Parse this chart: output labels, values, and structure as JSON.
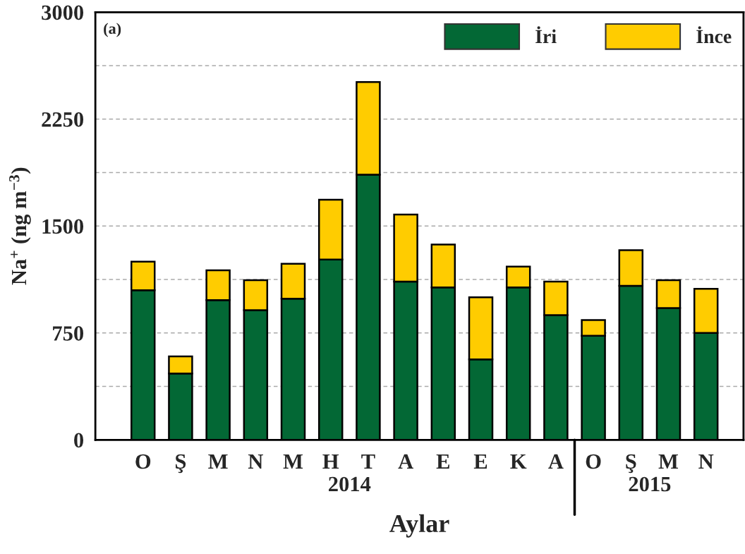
{
  "chart_data": {
    "type": "bar",
    "stacked": true,
    "xlabel": "Aylar",
    "ylabel": "Na$^{+}$ (ng m$^{−3}$)",
    "annotations": [
      "(a)",
      "2014",
      "2015"
    ],
    "categories": [
      "O",
      "Ş",
      "M",
      "N",
      "M",
      "H",
      "T",
      "A",
      "E",
      "E",
      "K",
      "A",
      "O",
      "Ş",
      "M",
      "N"
    ],
    "series": [
      {
        "name": "İri",
        "color": "#036835",
        "values": [
          1050,
          465,
          980,
          910,
          990,
          1265,
          1860,
          1110,
          1070,
          565,
          1070,
          875,
          730,
          1080,
          925,
          750
        ]
      },
      {
        "name": "İnce",
        "color": "#ffcc00",
        "values": [
          200,
          120,
          210,
          210,
          245,
          420,
          650,
          470,
          300,
          435,
          145,
          235,
          110,
          250,
          195,
          310
        ]
      }
    ],
    "ylim": [
      0,
      3000
    ],
    "yticks": [
      0,
      {
        "value": 375,
        "label": null
      },
      750,
      {
        "value": 1125,
        "label": null
      },
      1500,
      {
        "value": 1875,
        "label": null
      },
      2250,
      {
        "value": 2625,
        "label": null
      },
      3000
    ],
    "grid": "y",
    "legend": "top right"
  }
}
